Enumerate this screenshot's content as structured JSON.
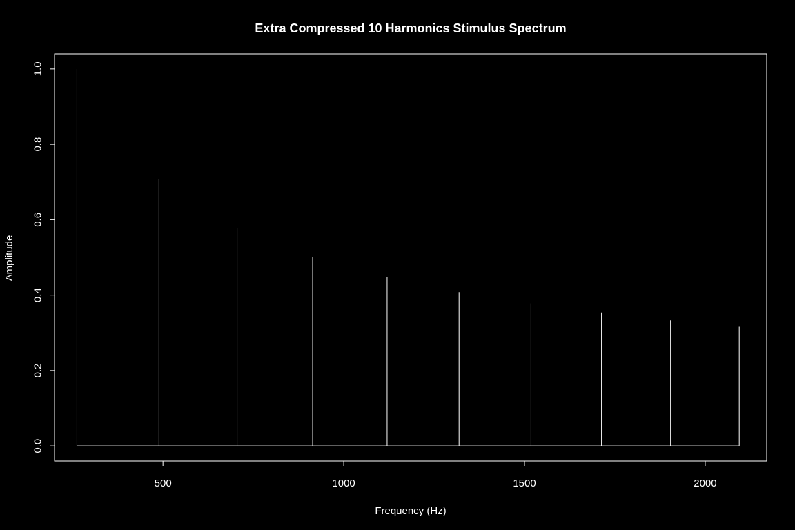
{
  "chart_data": {
    "type": "line",
    "subtype": "spectrum-stem",
    "title": "Extra Compressed 10 Harmonics Stimulus Spectrum",
    "xlabel": "Frequency (Hz)",
    "ylabel": "Amplitude",
    "xlim": [
      200,
      2170
    ],
    "ylim": [
      -0.04,
      1.04
    ],
    "x_ticks": [
      500,
      1000,
      1500,
      2000
    ],
    "x_tick_labels": [
      "500",
      "1000",
      "1500",
      "2000"
    ],
    "y_ticks": [
      0.0,
      0.2,
      0.4,
      0.6,
      0.8,
      1.0
    ],
    "y_tick_labels": [
      "0.0",
      "0.2",
      "0.4",
      "0.6",
      "0.8",
      "1.0"
    ],
    "grid": false,
    "legend": "none",
    "series": [
      {
        "x": [
          262,
          489,
          705,
          914,
          1120,
          1319,
          1518,
          1713,
          1904,
          2094
        ],
        "y": [
          1.0,
          0.707,
          0.577,
          0.5,
          0.447,
          0.408,
          0.378,
          0.354,
          0.333,
          0.316
        ]
      }
    ],
    "colors": {
      "background": "#000000",
      "foreground": "#ffffff"
    }
  }
}
